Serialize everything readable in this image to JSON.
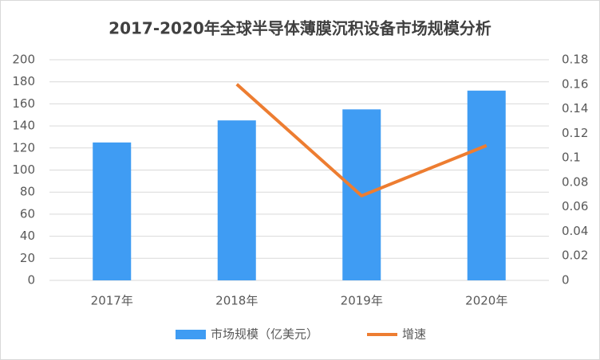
{
  "chart_data": {
    "type": "bar",
    "title": "2017-2020年全球半导体薄膜沉积设备市场规模分析",
    "categories": [
      "2017年",
      "2018年",
      "2019年",
      "2020年"
    ],
    "series": [
      {
        "name": "市场规模（亿美元）",
        "color": "#3f9cf3",
        "type": "bar",
        "values": [
          125,
          145,
          155,
          172
        ]
      },
      {
        "name": "增速",
        "color": "#ed7d31",
        "type": "line",
        "axis": "y2",
        "values": [
          null,
          0.16,
          0.069,
          0.11
        ]
      }
    ],
    "ylim": [
      0,
      200
    ],
    "yticks": [
      0,
      20,
      40,
      60,
      80,
      100,
      120,
      140,
      160,
      180,
      200
    ],
    "y2lim": [
      0,
      0.18
    ],
    "y2ticks": [
      0,
      0.02,
      0.04,
      0.06,
      0.08,
      0.1,
      0.12,
      0.14,
      0.16,
      0.18
    ],
    "grid": true,
    "legend": "bottom"
  }
}
